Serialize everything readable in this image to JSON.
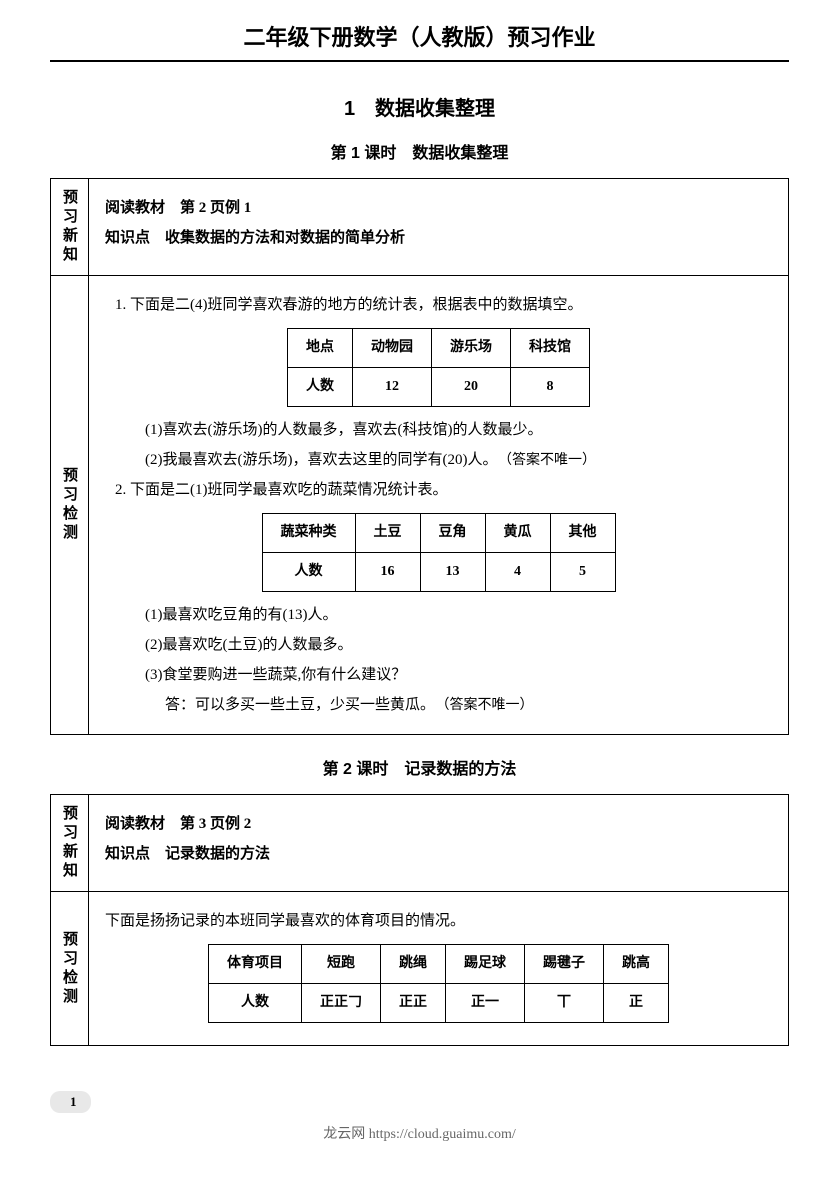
{
  "header": "二年级下册数学（人教版）预习作业",
  "chapter": "1　数据收集整理",
  "lesson1": {
    "title": "第 1 课时　数据收集整理",
    "prep_label": "预习新知",
    "prep_line1": "阅读教材　第 2 页例 1",
    "prep_line2a": "知识点",
    "prep_line2b": "收集数据的方法和对数据的简单分析",
    "test_label": "预习检测",
    "q1_intro": "1. 下面是二(4)班同学喜欢春游的地方的统计表，根据表中的数据填空。",
    "table1": {
      "headers": [
        "地点",
        "动物园",
        "游乐场",
        "科技馆"
      ],
      "row_label": "人数",
      "values": [
        "12",
        "20",
        "8"
      ]
    },
    "q1_1a": "(1)喜欢去(",
    "q1_1_ans1": "游乐场",
    "q1_1b": ")的人数最多，喜欢去(",
    "q1_1_ans2": "科技馆",
    "q1_1c": ")的人数最少。",
    "q1_2a": "(2)我最喜欢去(",
    "q1_2_ans1": "游乐场",
    "q1_2b": ")，喜欢去这里的同学有(",
    "q1_2_ans2": "20",
    "q1_2c": ")人。",
    "q1_2_note": "（答案不唯一）",
    "q2_intro": "2. 下面是二(1)班同学最喜欢吃的蔬菜情况统计表。",
    "table2": {
      "headers": [
        "蔬菜种类",
        "土豆",
        "豆角",
        "黄瓜",
        "其他"
      ],
      "row_label": "人数",
      "values": [
        "16",
        "13",
        "4",
        "5"
      ]
    },
    "q2_1a": "(1)最喜欢吃豆角的有(",
    "q2_1_ans": "13",
    "q2_1b": ")人。",
    "q2_2a": "(2)最喜欢吃(",
    "q2_2_ans": "土豆",
    "q2_2b": ")的人数最多。",
    "q2_3": "(3)食堂要购进一些蔬菜,你有什么建议？",
    "q2_3_ans": "答：可以多买一些土豆，少买一些黄瓜。",
    "q2_3_note": "（答案不唯一）"
  },
  "lesson2": {
    "title": "第 2 课时　记录数据的方法",
    "prep_label": "预习新知",
    "prep_line1": "阅读教材　第 3 页例 2",
    "prep_line2a": "知识点",
    "prep_line2b": "记录数据的方法",
    "test_label": "预习检测",
    "intro": "下面是扬扬记录的本班同学最喜欢的体育项目的情况。",
    "table": {
      "headers": [
        "体育项目",
        "短跑",
        "跳绳",
        "踢足球",
        "踢毽子",
        "跳高"
      ],
      "row_label": "人数",
      "tallies": [
        "正正𠃌",
        "正正",
        "正一",
        "丅",
        "正"
      ]
    }
  },
  "page_num": "1",
  "footer": "龙云网 https://cloud.guaimu.com/"
}
